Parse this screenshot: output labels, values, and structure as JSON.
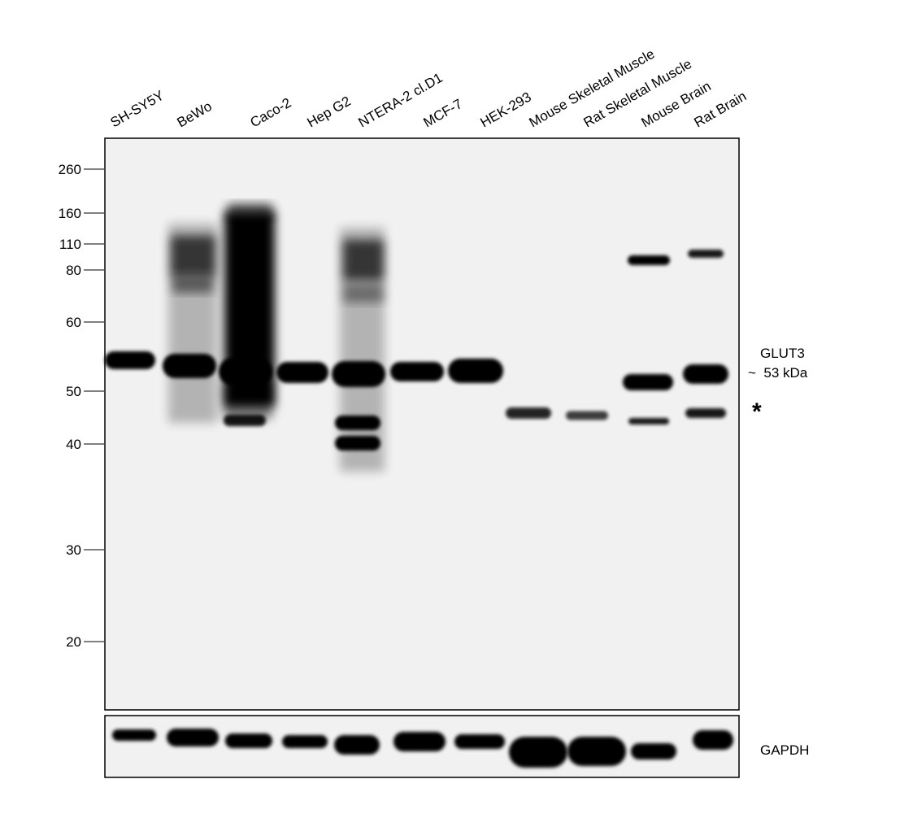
{
  "lanes": [
    "SH-SY5Y",
    "BeWo",
    "Caco-2",
    "Hep G2",
    "NTERA-2 cl.D1",
    "MCF-7",
    "HEK-293",
    "Mouse Skeletal Muscle",
    "Rat Skeletal Muscle",
    "Mouse Brain",
    "Rat Brain"
  ],
  "markers": [
    "260",
    "160",
    "110",
    "80",
    "60",
    "50",
    "40",
    "30",
    "20"
  ],
  "target": {
    "name": "GLUT3",
    "size": "~  53 kDa"
  },
  "asterisk": "*",
  "loading_control": "GAPDH"
}
